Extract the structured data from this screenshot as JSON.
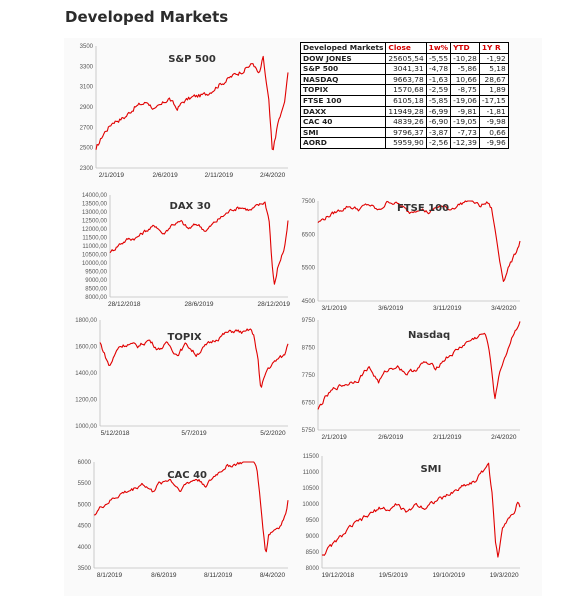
{
  "page": {
    "title": "Developed Markets"
  },
  "table": {
    "title": "Developed Markets",
    "headers": [
      "Close",
      "1w%",
      "YTD",
      "1Y R"
    ],
    "rows": [
      [
        "DOW JONES",
        "25605,54",
        "-5,55",
        "-10,28",
        "-1,92"
      ],
      [
        "S&P 500",
        "3041,31",
        "-4,78",
        "-5,86",
        "5,18"
      ],
      [
        "NASDAQ",
        "9663,78",
        "-1,63",
        "10,66",
        "28,67"
      ],
      [
        "TOPIX",
        "1570,68",
        "-2,59",
        "-8,75",
        "1,89"
      ],
      [
        "FTSE 100",
        "6105,18",
        "-5,85",
        "-19,06",
        "-17,15"
      ],
      [
        "DAXX",
        "11949,28",
        "-6,99",
        "-9,81",
        "-1,81"
      ],
      [
        "CAC 40",
        "4839,26",
        "-6,90",
        "-19,05",
        "-9,98"
      ],
      [
        "SMI",
        "9796,37",
        "-3,87",
        "-7,73",
        "0,66"
      ],
      [
        "AORD",
        "5959,90",
        "-2,56",
        "-12,39",
        "-9,96"
      ]
    ]
  },
  "colors": {
    "line": "#e00000",
    "axis": "#bfbfbf"
  },
  "chart_data": [
    {
      "id": "sp500",
      "type": "line",
      "title": "S&P 500",
      "ylim": [
        2300,
        3500
      ],
      "yticks": [
        "2300",
        "2500",
        "2700",
        "2900",
        "3100",
        "3300",
        "3500"
      ],
      "xticks": [
        "2/1/2019",
        "2/6/2019",
        "2/11/2019",
        "2/4/2020"
      ],
      "anchors": [
        [
          0,
          2480
        ],
        [
          0.04,
          2640
        ],
        [
          0.09,
          2760
        ],
        [
          0.15,
          2800
        ],
        [
          0.2,
          2900
        ],
        [
          0.27,
          2950
        ],
        [
          0.31,
          2870
        ],
        [
          0.34,
          2910
        ],
        [
          0.38,
          2990
        ],
        [
          0.42,
          2880
        ],
        [
          0.46,
          2960
        ],
        [
          0.51,
          3000
        ],
        [
          0.57,
          3020
        ],
        [
          0.63,
          3110
        ],
        [
          0.7,
          3190
        ],
        [
          0.76,
          3260
        ],
        [
          0.82,
          3330
        ],
        [
          0.85,
          3210
        ],
        [
          0.87,
          3380
        ],
        [
          0.9,
          2950
        ],
        [
          0.91,
          2680
        ],
        [
          0.92,
          2400
        ],
        [
          0.93,
          2560
        ],
        [
          0.95,
          2760
        ],
        [
          0.97,
          2860
        ],
        [
          0.985,
          2970
        ],
        [
          1,
          3240
        ]
      ]
    },
    {
      "id": "dax",
      "type": "line",
      "title": "DAX 30",
      "ylim": [
        8000,
        14000
      ],
      "yticks": [
        "8000,00",
        "8500,00",
        "9000,00",
        "9500,00",
        "10000,00",
        "10500,00",
        "11000,00",
        "11500,00",
        "12000,00",
        "12500,00",
        "13000,00",
        "13500,00",
        "14000,00"
      ],
      "xticks": [
        "28/12/2018",
        "28/6/2019",
        "28/12/2019"
      ],
      "anchors": [
        [
          0,
          10600
        ],
        [
          0.05,
          11100
        ],
        [
          0.1,
          11400
        ],
        [
          0.15,
          11500
        ],
        [
          0.2,
          11900
        ],
        [
          0.26,
          12200
        ],
        [
          0.3,
          11700
        ],
        [
          0.35,
          12300
        ],
        [
          0.4,
          12400
        ],
        [
          0.44,
          12000
        ],
        [
          0.49,
          12300
        ],
        [
          0.54,
          11900
        ],
        [
          0.59,
          12400
        ],
        [
          0.64,
          12800
        ],
        [
          0.69,
          13200
        ],
        [
          0.74,
          13300
        ],
        [
          0.79,
          13100
        ],
        [
          0.84,
          13400
        ],
        [
          0.87,
          13600
        ],
        [
          0.895,
          12500
        ],
        [
          0.91,
          10000
        ],
        [
          0.925,
          8600
        ],
        [
          0.94,
          9600
        ],
        [
          0.96,
          10300
        ],
        [
          0.975,
          10700
        ],
        [
          0.99,
          11600
        ],
        [
          1,
          12500
        ]
      ]
    },
    {
      "id": "ftse",
      "type": "line",
      "title": "FTSE 100",
      "ylim": [
        4500,
        7500
      ],
      "yticks": [
        "4500",
        "5500",
        "6500",
        "7500"
      ],
      "xticks": [
        "3/1/2019",
        "3/6/2019",
        "3/11/2019",
        "3/4/2020"
      ],
      "anchors": [
        [
          0,
          6850
        ],
        [
          0.05,
          7050
        ],
        [
          0.1,
          7200
        ],
        [
          0.15,
          7350
        ],
        [
          0.2,
          7250
        ],
        [
          0.25,
          7400
        ],
        [
          0.3,
          7200
        ],
        [
          0.35,
          7500
        ],
        [
          0.4,
          7400
        ],
        [
          0.45,
          7150
        ],
        [
          0.5,
          7300
        ],
        [
          0.55,
          7150
        ],
        [
          0.6,
          7350
        ],
        [
          0.65,
          7250
        ],
        [
          0.7,
          7400
        ],
        [
          0.75,
          7550
        ],
        [
          0.8,
          7350
        ],
        [
          0.84,
          7450
        ],
        [
          0.86,
          7250
        ],
        [
          0.88,
          6500
        ],
        [
          0.9,
          5700
        ],
        [
          0.92,
          5100
        ],
        [
          0.94,
          5500
        ],
        [
          0.96,
          5700
        ],
        [
          0.98,
          5950
        ],
        [
          1,
          6300
        ]
      ]
    },
    {
      "id": "topix",
      "type": "line",
      "title": "TOPIX",
      "ylim": [
        1000,
        1800
      ],
      "yticks": [
        "1000,00",
        "1200,00",
        "1400,00",
        "1600,00",
        "1800,00"
      ],
      "xticks": [
        "5/12/2018",
        "5/7/2019",
        "5/2/2020"
      ],
      "anchors": [
        [
          0,
          1630
        ],
        [
          0.05,
          1450
        ],
        [
          0.1,
          1600
        ],
        [
          0.15,
          1620
        ],
        [
          0.2,
          1600
        ],
        [
          0.26,
          1650
        ],
        [
          0.31,
          1580
        ],
        [
          0.36,
          1620
        ],
        [
          0.41,
          1540
        ],
        [
          0.46,
          1620
        ],
        [
          0.51,
          1540
        ],
        [
          0.56,
          1600
        ],
        [
          0.62,
          1660
        ],
        [
          0.67,
          1700
        ],
        [
          0.72,
          1720
        ],
        [
          0.77,
          1700
        ],
        [
          0.8,
          1730
        ],
        [
          0.82,
          1670
        ],
        [
          0.84,
          1520
        ],
        [
          0.855,
          1260
        ],
        [
          0.87,
          1350
        ],
        [
          0.89,
          1430
        ],
        [
          0.92,
          1470
        ],
        [
          0.95,
          1510
        ],
        [
          0.98,
          1530
        ],
        [
          1,
          1620
        ]
      ]
    },
    {
      "id": "nasdaq",
      "type": "line",
      "title": "Nasdaq",
      "ylim": [
        5750,
        9750
      ],
      "yticks": [
        "5750",
        "6750",
        "7750",
        "8750",
        "9750"
      ],
      "xticks": [
        "2/1/2019",
        "2/6/2019",
        "2/11/2019",
        "2/4/2020"
      ],
      "anchors": [
        [
          0,
          6500
        ],
        [
          0.04,
          6950
        ],
        [
          0.09,
          7300
        ],
        [
          0.15,
          7450
        ],
        [
          0.2,
          7600
        ],
        [
          0.25,
          8050
        ],
        [
          0.3,
          7500
        ],
        [
          0.34,
          7900
        ],
        [
          0.39,
          8100
        ],
        [
          0.44,
          7800
        ],
        [
          0.48,
          7950
        ],
        [
          0.53,
          8200
        ],
        [
          0.58,
          8000
        ],
        [
          0.63,
          8350
        ],
        [
          0.68,
          8600
        ],
        [
          0.73,
          8900
        ],
        [
          0.78,
          9100
        ],
        [
          0.82,
          9250
        ],
        [
          0.84,
          9000
        ],
        [
          0.86,
          7900
        ],
        [
          0.875,
          6900
        ],
        [
          0.89,
          7500
        ],
        [
          0.91,
          8100
        ],
        [
          0.94,
          8700
        ],
        [
          0.97,
          9300
        ],
        [
          1,
          9700
        ]
      ]
    },
    {
      "id": "cac",
      "type": "line",
      "title": "CAC 40",
      "ylim": [
        3500,
        6000
      ],
      "yticks": [
        "3500",
        "4000",
        "4500",
        "5000",
        "5500",
        "6000"
      ],
      "xticks": [
        "8/1/2019",
        "8/6/2019",
        "8/11/2019",
        "8/4/2020"
      ],
      "anchors": [
        [
          0,
          4750
        ],
        [
          0.04,
          4950
        ],
        [
          0.09,
          5100
        ],
        [
          0.14,
          5250
        ],
        [
          0.2,
          5350
        ],
        [
          0.25,
          5500
        ],
        [
          0.3,
          5300
        ],
        [
          0.34,
          5500
        ],
        [
          0.39,
          5600
        ],
        [
          0.44,
          5350
        ],
        [
          0.48,
          5500
        ],
        [
          0.53,
          5600
        ],
        [
          0.58,
          5450
        ],
        [
          0.63,
          5700
        ],
        [
          0.68,
          5900
        ],
        [
          0.73,
          5950
        ],
        [
          0.78,
          6000
        ],
        [
          0.82,
          6050
        ],
        [
          0.84,
          5800
        ],
        [
          0.86,
          5000
        ],
        [
          0.875,
          4300
        ],
        [
          0.885,
          3800
        ],
        [
          0.9,
          4300
        ],
        [
          0.93,
          4400
        ],
        [
          0.96,
          4500
        ],
        [
          0.985,
          4700
        ],
        [
          1,
          5100
        ]
      ]
    },
    {
      "id": "smi",
      "type": "line",
      "title": "SMI",
      "ylim": [
        8000,
        11500
      ],
      "yticks": [
        "8000",
        "8500",
        "9000",
        "9500",
        "10000",
        "10500",
        "11000",
        "11500"
      ],
      "xticks": [
        "19/12/2018",
        "19/5/2019",
        "19/10/2019",
        "19/3/2020"
      ],
      "anchors": [
        [
          0,
          8400
        ],
        [
          0.05,
          8700
        ],
        [
          0.1,
          9000
        ],
        [
          0.15,
          9300
        ],
        [
          0.2,
          9500
        ],
        [
          0.25,
          9700
        ],
        [
          0.3,
          9900
        ],
        [
          0.34,
          9800
        ],
        [
          0.38,
          10000
        ],
        [
          0.43,
          9700
        ],
        [
          0.47,
          10000
        ],
        [
          0.52,
          9900
        ],
        [
          0.57,
          10100
        ],
        [
          0.62,
          10200
        ],
        [
          0.67,
          10400
        ],
        [
          0.72,
          10600
        ],
        [
          0.77,
          10700
        ],
        [
          0.81,
          11000
        ],
        [
          0.84,
          11300
        ],
        [
          0.86,
          10300
        ],
        [
          0.875,
          8800
        ],
        [
          0.89,
          8300
        ],
        [
          0.91,
          9300
        ],
        [
          0.94,
          9600
        ],
        [
          0.97,
          9700
        ],
        [
          0.985,
          10000
        ],
        [
          1,
          9900
        ]
      ]
    }
  ]
}
